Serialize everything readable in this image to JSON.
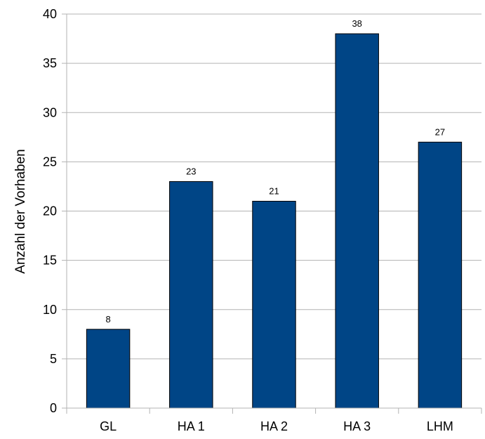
{
  "chart_data": {
    "type": "bar",
    "title": "",
    "xlabel": "",
    "ylabel": "Anzahl der Vorhaben",
    "categories": [
      "GL",
      "HA 1",
      "HA 2",
      "HA 3",
      "LHM"
    ],
    "values": [
      8,
      23,
      21,
      38,
      27
    ],
    "ylim": [
      0,
      40
    ],
    "y_ticks": [
      0,
      5,
      10,
      15,
      20,
      25,
      30,
      35,
      40
    ],
    "grid": true,
    "legend": "none",
    "bar_color": "#004586",
    "bar_border_color": "#000000",
    "grid_color": "#b3b3b3",
    "axis_color": "#b3b3b3"
  }
}
